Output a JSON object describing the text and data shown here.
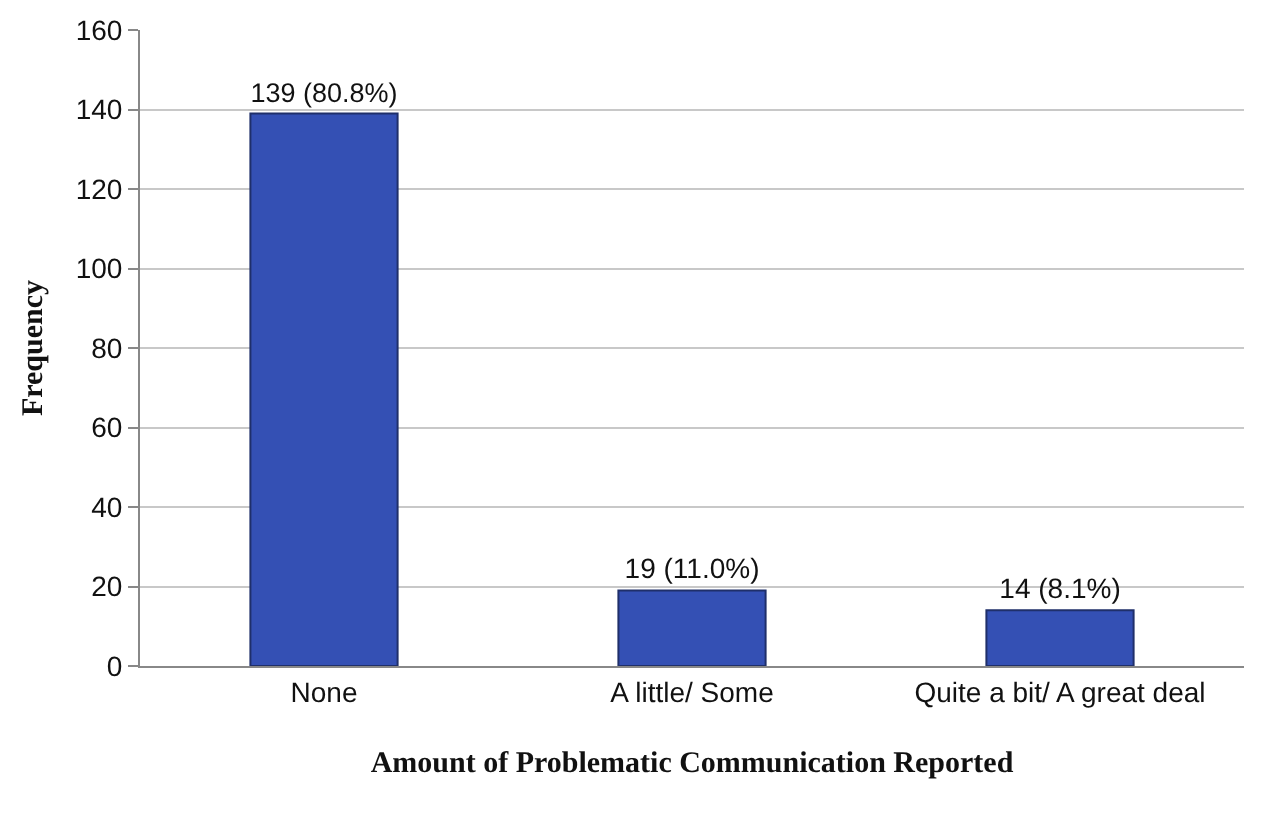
{
  "chart_data": {
    "type": "bar",
    "xlabel": "Amount of Problematic Communication Reported",
    "ylabel": "Frequency",
    "categories": [
      "None",
      "A little/ Some",
      "Quite a bit/ A great deal"
    ],
    "values": [
      139,
      19,
      14
    ],
    "value_labels": [
      "139 (80.8%)",
      "19 (11.0%)",
      "14 (8.1%)"
    ],
    "color": "#3450b4",
    "ylim": [
      0,
      160
    ],
    "yticks": [
      0,
      20,
      40,
      60,
      80,
      100,
      120,
      140,
      160
    ],
    "grid": "y",
    "legend": false
  }
}
